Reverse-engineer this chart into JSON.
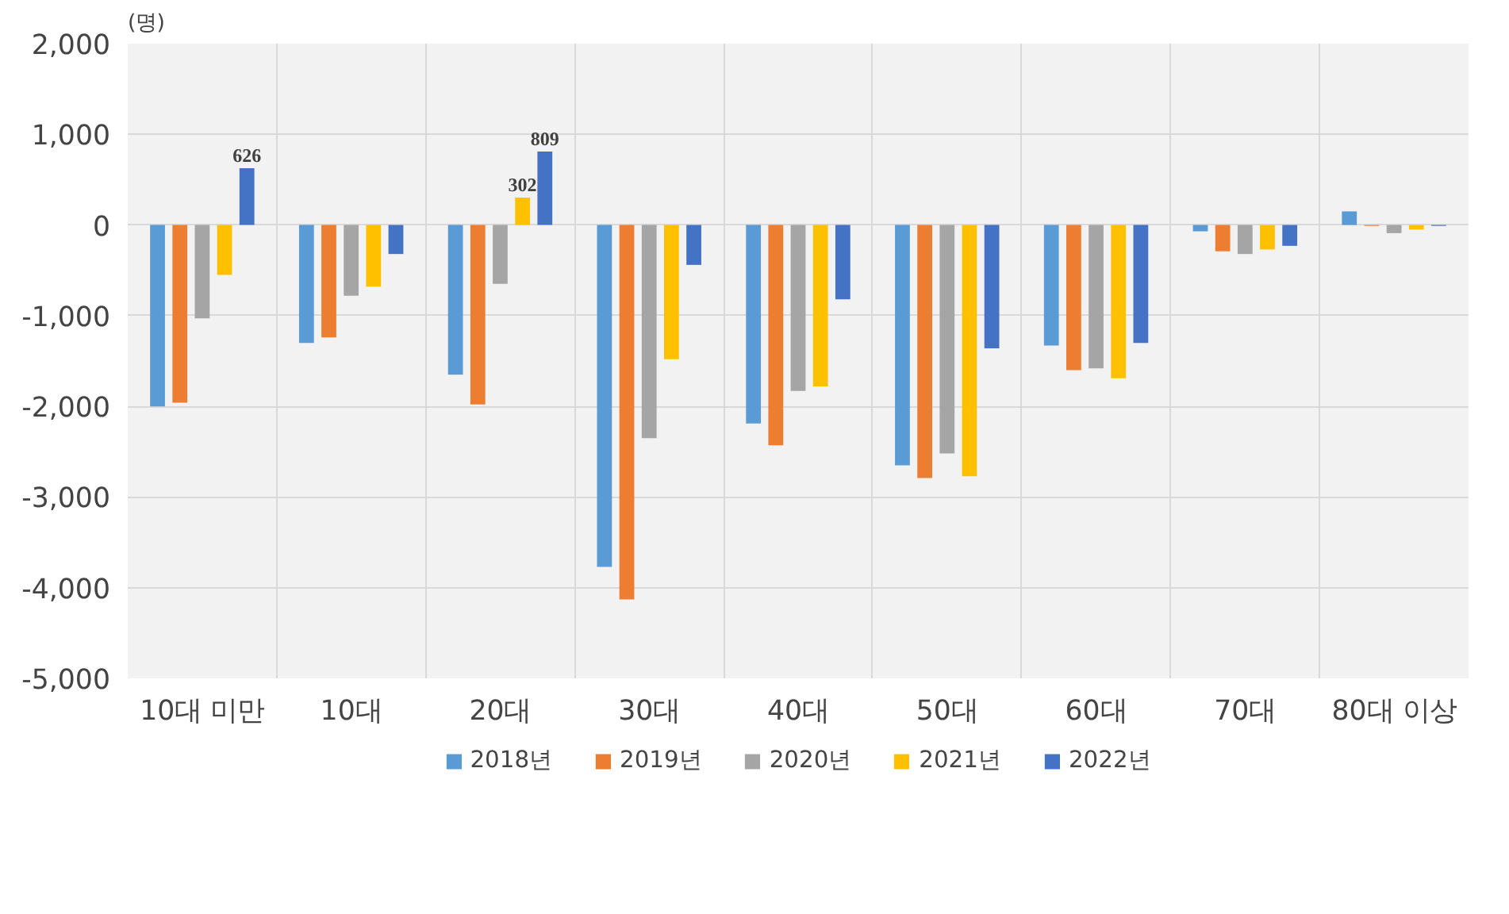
{
  "chart_data": {
    "type": "bar",
    "ylabel": "(명)",
    "categories": [
      "10대 미만",
      "10대",
      "20대",
      "30대",
      "40대",
      "50대",
      "60대",
      "70대",
      "80대 이상"
    ],
    "series": [
      {
        "name": "2018년",
        "color": "#5b9bd5",
        "values": [
          -2000,
          -1300,
          -1650,
          -3770,
          -2190,
          -2650,
          -1330,
          -70,
          150
        ]
      },
      {
        "name": "2019년",
        "color": "#ed7d31",
        "values": [
          -1960,
          -1240,
          -1980,
          -4130,
          -2430,
          -2790,
          -1600,
          -290,
          -10
        ]
      },
      {
        "name": "2020년",
        "color": "#a5a5a5",
        "values": [
          -1030,
          -780,
          -650,
          -2350,
          -1830,
          -2520,
          -1580,
          -320,
          -90
        ]
      },
      {
        "name": "2021년",
        "color": "#ffc000",
        "values": [
          -550,
          -680,
          302,
          -1480,
          -1780,
          -2770,
          -1690,
          -270,
          -50
        ],
        "value_labels": [
          null,
          null,
          "302",
          null,
          null,
          null,
          null,
          null,
          null
        ]
      },
      {
        "name": "2022년",
        "color": "#4472c4",
        "values": [
          626,
          -320,
          809,
          -440,
          -820,
          -1360,
          -1300,
          -230,
          -10
        ],
        "value_labels": [
          "626",
          null,
          "809",
          null,
          null,
          null,
          null,
          null,
          null
        ]
      }
    ],
    "ylim": [
      -5000,
      2000
    ],
    "yticks": [
      {
        "value": -5000,
        "label": "-5,000"
      },
      {
        "value": -4000,
        "label": "-4,000"
      },
      {
        "value": -3000,
        "label": "-3,000"
      },
      {
        "value": -2000,
        "label": "-2,000"
      },
      {
        "value": -1000,
        "label": "-1,000"
      },
      0,
      {
        "value": 1000,
        "label": "1,000"
      },
      {
        "value": 2000,
        "label": "2,000"
      }
    ],
    "grid": true,
    "legend": "bottom"
  }
}
